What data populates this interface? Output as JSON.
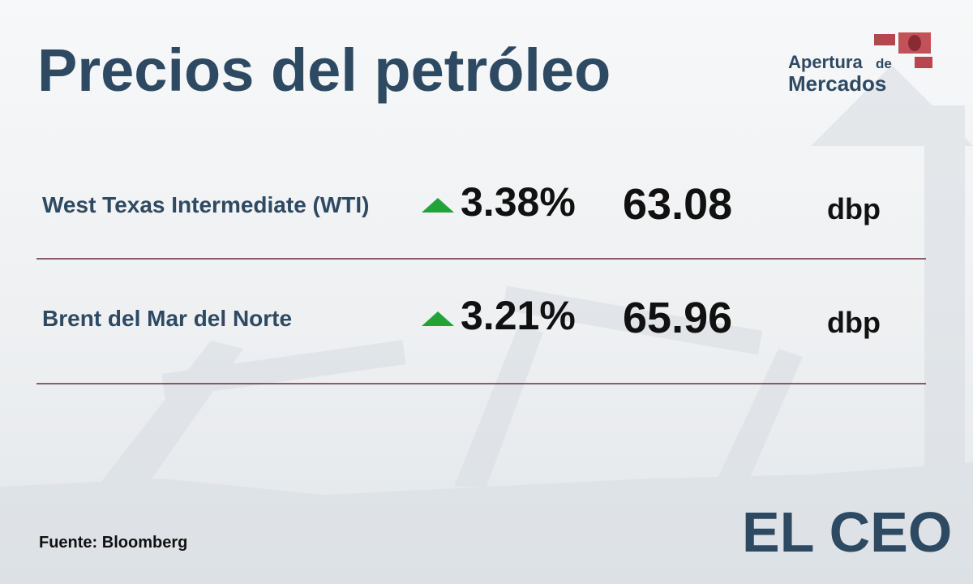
{
  "header": {
    "title": "Precios del petróleo"
  },
  "logo": {
    "line1": "Apertura",
    "line1b": "de",
    "line2": "Mercados"
  },
  "rows": [
    {
      "name": "West Texas Intermediate (WTI)",
      "change": "3.38%",
      "price": "63.08",
      "unit": "dbp"
    },
    {
      "name": "Brent del Mar del Norte",
      "change": "3.21%",
      "price": "65.96",
      "unit": "dbp"
    }
  ],
  "footer": {
    "source": "Fuente: Bloomberg",
    "brand": "EL CEO"
  }
}
